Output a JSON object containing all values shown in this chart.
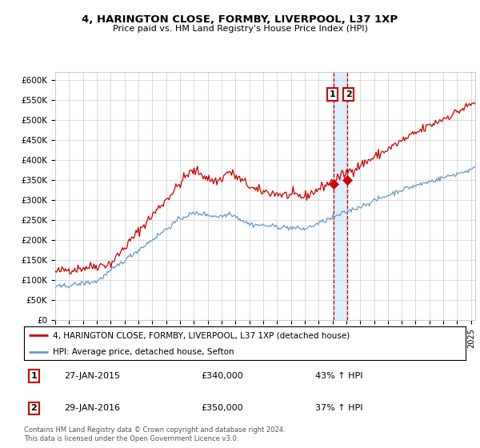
{
  "title1": "4, HARINGTON CLOSE, FORMBY, LIVERPOOL, L37 1XP",
  "title2": "Price paid vs. HM Land Registry's House Price Index (HPI)",
  "legend_line1": "4, HARINGTON CLOSE, FORMBY, LIVERPOOL, L37 1XP (detached house)",
  "legend_line2": "HPI: Average price, detached house, Sefton",
  "annotation1_date": "27-JAN-2015",
  "annotation1_price": "£340,000",
  "annotation1_hpi": "43% ↑ HPI",
  "annotation2_date": "29-JAN-2016",
  "annotation2_price": "£350,000",
  "annotation2_hpi": "37% ↑ HPI",
  "footer": "Contains HM Land Registry data © Crown copyright and database right 2024.\nThis data is licensed under the Open Government Licence v3.0.",
  "red_color": "#cc0000",
  "blue_color": "#6699cc",
  "highlight_color": "#ddeeff",
  "grid_color": "#cccccc",
  "ylim": [
    0,
    620000
  ],
  "yticks": [
    0,
    50000,
    100000,
    150000,
    200000,
    250000,
    300000,
    350000,
    400000,
    450000,
    500000,
    550000,
    600000
  ],
  "sale1_year": 2015.07,
  "sale1_price": 340000,
  "sale2_year": 2016.08,
  "sale2_price": 350000,
  "highlight_start": 2015.07,
  "highlight_end": 2016.08,
  "xmin": 1995,
  "xmax": 2025.3
}
